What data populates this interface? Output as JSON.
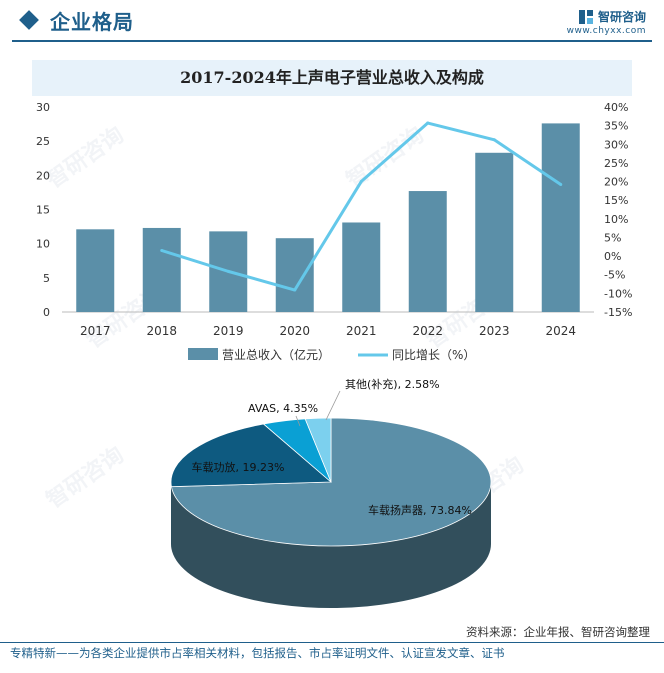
{
  "header": {
    "title": "企业格局"
  },
  "logo": {
    "name": "智研咨询",
    "url": "www.chyxx.com"
  },
  "watermark": {
    "text": "智研咨询"
  },
  "chart_data": [
    {
      "type": "bar",
      "title": "2017-2024年上声电子营业总收入及构成",
      "categories": [
        "2017",
        "2018",
        "2019",
        "2020",
        "2021",
        "2022",
        "2023",
        "2024"
      ],
      "series": [
        {
          "name": "营业总收入（亿元）",
          "type": "bar",
          "axis": "left",
          "values": [
            12.1,
            12.3,
            11.8,
            10.8,
            13.1,
            17.7,
            23.3,
            27.6
          ],
          "color": "#5b8fa8"
        },
        {
          "name": "同比增长（%）",
          "type": "line",
          "axis": "right",
          "values": [
            null,
            1.5,
            -4.1,
            -9.1,
            20.0,
            35.7,
            31.2,
            19.2
          ],
          "color": "#64c8ea"
        }
      ],
      "y_left": {
        "min": 0,
        "max": 30,
        "ticks": [
          0,
          5,
          10,
          15,
          20,
          25,
          30
        ]
      },
      "y_right": {
        "min": -15,
        "max": 40,
        "tick_labels": [
          "-15%",
          "-10%",
          "-5%",
          "0%",
          "5%",
          "10%",
          "15%",
          "20%",
          "25%",
          "30%",
          "35%",
          "40%"
        ],
        "tick_values": [
          -15,
          -10,
          -5,
          0,
          5,
          10,
          15,
          20,
          25,
          30,
          35,
          40
        ]
      },
      "grid": false,
      "legend_position": "bottom"
    },
    {
      "type": "pie",
      "style": "3d",
      "slices": [
        {
          "label": "车载扬声器",
          "value": 73.84,
          "display": "车载扬声器, 73.84%",
          "color": "#5b8fa8"
        },
        {
          "label": "车载功放",
          "value": 19.23,
          "display": "车载功放, 19.23%",
          "color": "#0e5a80"
        },
        {
          "label": "AVAS",
          "value": 4.35,
          "display": "AVAS, 4.35%",
          "color": "#0aa0d4"
        },
        {
          "label": "其他(补充)",
          "value": 2.58,
          "display": "其他(补充), 2.58%",
          "color": "#7cd0ee"
        }
      ]
    }
  ],
  "footer": {
    "source": "资料来源：企业年报、智研咨询整理",
    "note": "专精特新——为各类企业提供市占率相关材料，包括报告、市占率证明文件、认证宣发文章、证书"
  }
}
